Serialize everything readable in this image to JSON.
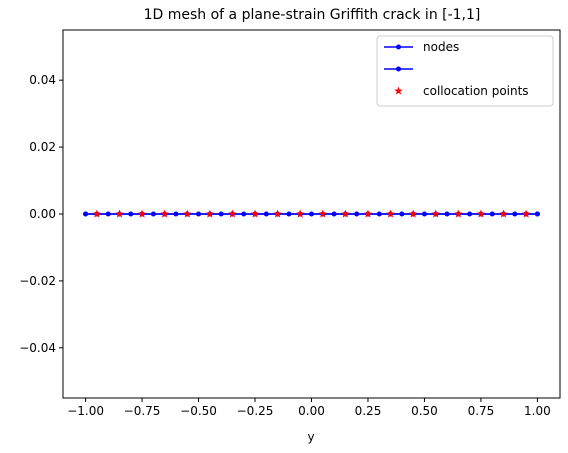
{
  "chart_data": {
    "type": "line",
    "title": "1D mesh of a plane-strain Griffith crack in [-1,1]",
    "xlabel": "y",
    "ylabel": "",
    "xlim": [
      -1.1,
      1.1
    ],
    "ylim": [
      -0.055,
      0.055
    ],
    "x_ticks": [
      -1.0,
      -0.75,
      -0.5,
      -0.25,
      0.0,
      0.25,
      0.5,
      0.75,
      1.0
    ],
    "x_tick_labels": [
      "−1.00",
      "−0.75",
      "−0.50",
      "−0.25",
      "0.00",
      "0.25",
      "0.50",
      "0.75",
      "1.00"
    ],
    "y_ticks": [
      -0.04,
      -0.02,
      0.0,
      0.02,
      0.04
    ],
    "y_tick_labels": [
      "−0.04",
      "−0.02",
      "0.00",
      "0.02",
      "0.04"
    ],
    "grid": false,
    "legend_position": "top-right",
    "series": [
      {
        "name": "nodes",
        "kind": "line-with-dot-markers",
        "color": "#0000ff",
        "x": [
          -1.0,
          -0.95,
          -0.9,
          -0.85,
          -0.8,
          -0.75,
          -0.7,
          -0.65,
          -0.6,
          -0.55,
          -0.5,
          -0.45,
          -0.4,
          -0.35,
          -0.3,
          -0.25,
          -0.2,
          -0.15,
          -0.1,
          -0.05,
          0.0,
          0.05,
          0.1,
          0.15,
          0.2,
          0.25,
          0.3,
          0.35,
          0.4,
          0.45,
          0.5,
          0.55,
          0.6,
          0.65,
          0.7,
          0.75,
          0.8,
          0.85,
          0.9,
          0.95,
          1.0
        ],
        "y": [
          0,
          0,
          0,
          0,
          0,
          0,
          0,
          0,
          0,
          0,
          0,
          0,
          0,
          0,
          0,
          0,
          0,
          0,
          0,
          0,
          0,
          0,
          0,
          0,
          0,
          0,
          0,
          0,
          0,
          0,
          0,
          0,
          0,
          0,
          0,
          0,
          0,
          0,
          0,
          0,
          0
        ]
      },
      {
        "name": "",
        "kind": "line-with-dot-markers",
        "color": "#0000ff",
        "x": [
          -1.0,
          1.0
        ],
        "y": [
          0,
          0
        ]
      },
      {
        "name": "collocation points",
        "kind": "star-markers",
        "color": "#ff0000",
        "x": [
          -0.95,
          -0.85,
          -0.75,
          -0.65,
          -0.55,
          -0.45,
          -0.35,
          -0.25,
          -0.15,
          -0.05,
          0.05,
          0.15,
          0.25,
          0.35,
          0.45,
          0.55,
          0.65,
          0.75,
          0.85,
          0.95
        ],
        "y": [
          0,
          0,
          0,
          0,
          0,
          0,
          0,
          0,
          0,
          0,
          0,
          0,
          0,
          0,
          0,
          0,
          0,
          0,
          0,
          0
        ]
      }
    ]
  }
}
